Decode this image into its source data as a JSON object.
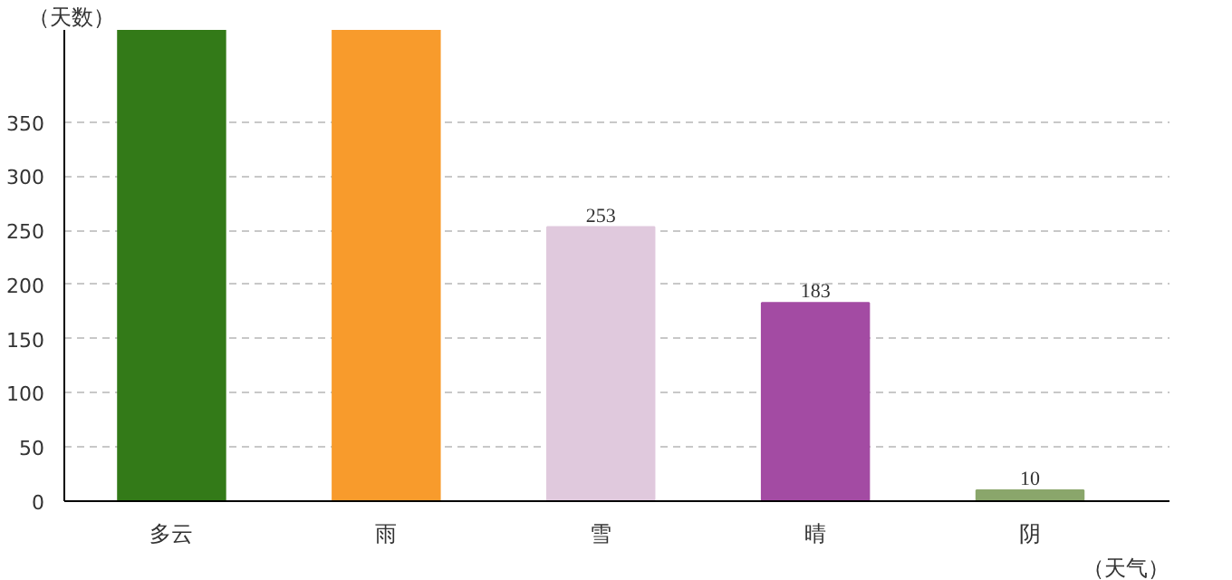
{
  "chart_data": {
    "type": "bar",
    "xlabel": "（天气）",
    "ylabel": "（天数）",
    "categories": [
      "多云",
      "雨",
      "雪",
      "晴",
      "阴"
    ],
    "values": [
      435,
      435,
      253,
      183,
      10
    ],
    "colors": [
      "#337a18",
      "#f89b2c",
      "#e0c9dd",
      "#a34ba3",
      "#8aa66b"
    ],
    "value_labels": [
      null,
      null,
      "253",
      "183",
      "10"
    ],
    "ylim": [
      0,
      435
    ],
    "yticks": [
      0,
      50,
      100,
      150,
      200,
      250,
      300,
      350
    ],
    "grid": "y"
  }
}
